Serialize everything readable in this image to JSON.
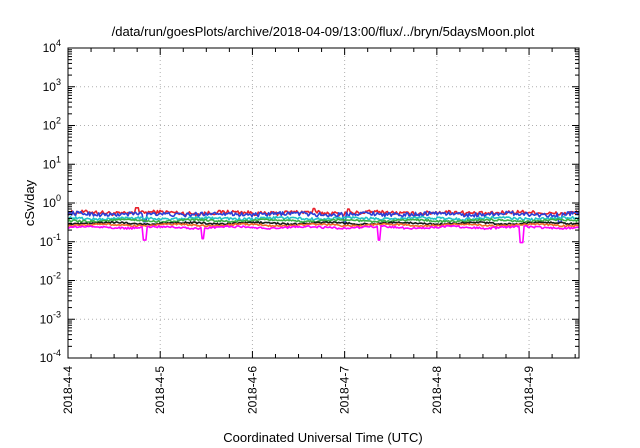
{
  "chart_data": {
    "type": "line",
    "title": "/data/run/goesPlots/archive/2018-04-09/13:00/flux/../bryn/5daysMoon.plot",
    "xlabel": "Coordinated Universal Time (UTC)",
    "ylabel": "cSv/day",
    "yscale": "log",
    "ylim": [
      0.0001,
      10000
    ],
    "y_ticks": [
      {
        "base": "10",
        "exp": "-4",
        "value": 0.0001
      },
      {
        "base": "10",
        "exp": "-3",
        "value": 0.001
      },
      {
        "base": "10",
        "exp": "-2",
        "value": 0.01
      },
      {
        "base": "10",
        "exp": "-1",
        "value": 0.1
      },
      {
        "base": "10",
        "exp": "0",
        "value": 1
      },
      {
        "base": "10",
        "exp": "1",
        "value": 10
      },
      {
        "base": "10",
        "exp": "2",
        "value": 100
      },
      {
        "base": "10",
        "exp": "3",
        "value": 1000
      },
      {
        "base": "10",
        "exp": "4",
        "value": 10000
      }
    ],
    "x_ticks": [
      "2018-4-4",
      "2018-4-5",
      "2018-4-6",
      "2018-4-7",
      "2018-4-8",
      "2018-4-9"
    ],
    "xlim": [
      "2018-04-04T00:00",
      "2018-04-09T13:00"
    ],
    "grid": true,
    "legend": "none",
    "series": [
      {
        "color": "#e8202a",
        "level": 0.56,
        "variation": 0.12,
        "dips": [],
        "spikes": [
          [
            "2018-04-04T18:00",
            0.75
          ],
          [
            "2018-04-06T16:00",
            0.72
          ],
          [
            "2018-04-07T01:00",
            0.7
          ]
        ]
      },
      {
        "color": "#2b3fd6",
        "level": 0.52,
        "variation": 0.12,
        "dips": [
          [
            "2018-04-04T20:00",
            0.33
          ],
          [
            "2018-04-07T00:00",
            0.3
          ],
          [
            "2018-04-09T08:00",
            0.32
          ]
        ],
        "spikes": []
      },
      {
        "color": "#22c3c6",
        "level": 0.4,
        "variation": 0.08,
        "dips": [],
        "spikes": []
      },
      {
        "color": "#3cb043",
        "level": 0.35,
        "variation": 0.06,
        "dips": [],
        "spikes": []
      },
      {
        "color": "#1a1a1a",
        "level": 0.3,
        "variation": 0.05,
        "dips": [],
        "spikes": []
      },
      {
        "color": "#f06e2a",
        "level": 0.27,
        "variation": 0.05,
        "dips": [],
        "spikes": []
      },
      {
        "color": "#ff00ff",
        "level": 0.235,
        "variation": 0.06,
        "dips": [
          [
            "2018-04-04T20:00",
            0.11
          ],
          [
            "2018-04-05T11:00",
            0.12
          ],
          [
            "2018-04-07T09:00",
            0.11
          ],
          [
            "2018-04-08T22:00",
            0.095
          ]
        ],
        "spikes": []
      }
    ]
  }
}
